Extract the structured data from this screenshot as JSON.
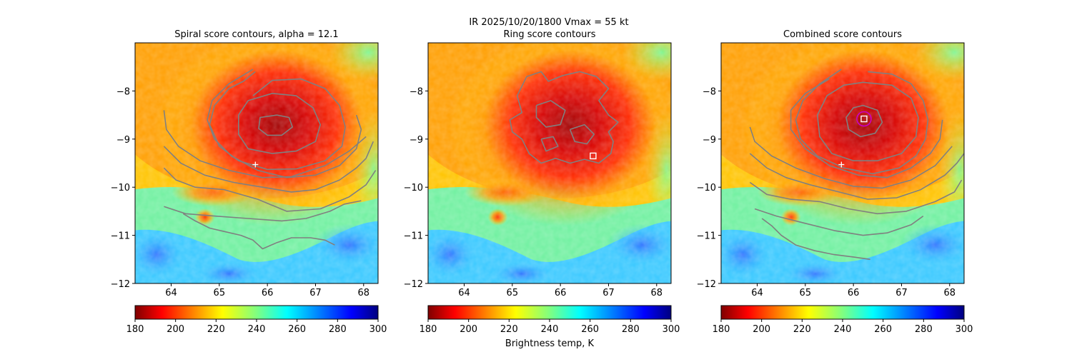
{
  "suptitle": "IR  2025/10/20/1800    Vmax = 55 kt",
  "colorbar_label": "Brightness temp, K",
  "colors": {
    "contour": "#808080",
    "marker": "#ffffff",
    "circle": "#cc00cc"
  },
  "chart_data": [
    {
      "type": "heatmap",
      "title": "Spiral score contours, alpha = 12.1",
      "xlim": [
        63.25,
        68.3
      ],
      "ylim": [
        -12.0,
        -7.0
      ],
      "x_ticks": [
        64,
        65,
        66,
        67,
        68
      ],
      "y_ticks": [
        -8,
        -9,
        -10,
        -11,
        -12
      ],
      "colorbar": {
        "colormap": "jet",
        "min": 180,
        "max": 300,
        "ticks": [
          180,
          200,
          220,
          240,
          260,
          280,
          300
        ]
      },
      "markers": [
        {
          "shape": "plus",
          "x": 65.75,
          "y": -9.53
        }
      ],
      "contours": [
        [
          [
            66.2,
            -8.5
          ],
          [
            66.45,
            -8.55
          ],
          [
            66.52,
            -8.75
          ],
          [
            66.3,
            -8.92
          ],
          [
            66.0,
            -8.92
          ],
          [
            65.82,
            -8.78
          ],
          [
            65.85,
            -8.55
          ],
          [
            66.2,
            -8.5
          ]
        ],
        [
          [
            66.1,
            -8.05
          ],
          [
            66.6,
            -8.1
          ],
          [
            66.95,
            -8.35
          ],
          [
            67.1,
            -8.7
          ],
          [
            67.0,
            -9.05
          ],
          [
            66.6,
            -9.25
          ],
          [
            66.1,
            -9.3
          ],
          [
            65.6,
            -9.2
          ],
          [
            65.4,
            -8.9
          ],
          [
            65.4,
            -8.5
          ],
          [
            65.6,
            -8.2
          ],
          [
            66.1,
            -8.05
          ]
        ],
        [
          [
            65.7,
            -8.1
          ],
          [
            66.1,
            -7.78
          ],
          [
            66.7,
            -7.75
          ],
          [
            67.2,
            -7.95
          ],
          [
            67.5,
            -8.3
          ],
          [
            67.62,
            -8.75
          ],
          [
            67.55,
            -9.15
          ],
          [
            67.2,
            -9.45
          ],
          [
            66.6,
            -9.62
          ],
          [
            66.0,
            -9.63
          ],
          [
            65.4,
            -9.45
          ],
          [
            65.0,
            -9.15
          ],
          [
            64.8,
            -8.7
          ],
          [
            64.9,
            -8.3
          ],
          [
            65.2,
            -7.95
          ],
          [
            65.5,
            -7.8
          ],
          [
            65.75,
            -7.6
          ]
        ],
        [
          [
            65.7,
            -7.55
          ],
          [
            65.2,
            -7.85
          ],
          [
            64.85,
            -8.2
          ],
          [
            64.75,
            -8.6
          ],
          [
            64.9,
            -9.0
          ],
          [
            65.25,
            -9.35
          ],
          [
            65.8,
            -9.65
          ],
          [
            66.4,
            -9.8
          ],
          [
            67.0,
            -9.75
          ],
          [
            67.5,
            -9.55
          ],
          [
            67.85,
            -9.2
          ],
          [
            67.95,
            -8.8
          ],
          [
            67.85,
            -8.5
          ]
        ],
        [
          [
            63.85,
            -8.4
          ],
          [
            63.9,
            -8.8
          ],
          [
            64.15,
            -9.15
          ],
          [
            64.6,
            -9.45
          ],
          [
            65.2,
            -9.65
          ],
          [
            65.9,
            -9.8
          ],
          [
            66.5,
            -9.78
          ],
          [
            67.2,
            -9.55
          ],
          [
            67.7,
            -9.25
          ],
          [
            68.05,
            -8.95
          ]
        ],
        [
          [
            63.85,
            -9.15
          ],
          [
            64.2,
            -9.5
          ],
          [
            64.7,
            -9.75
          ],
          [
            65.3,
            -9.9
          ],
          [
            65.9,
            -10.0
          ],
          [
            66.5,
            -10.1
          ],
          [
            67.0,
            -10.05
          ],
          [
            67.5,
            -9.85
          ],
          [
            67.85,
            -9.6
          ],
          [
            68.05,
            -9.4
          ],
          [
            68.2,
            -9.05
          ]
        ],
        [
          [
            63.85,
            -9.6
          ],
          [
            64.1,
            -9.85
          ],
          [
            64.5,
            -10.0
          ],
          [
            65.1,
            -10.05
          ],
          [
            65.8,
            -10.25
          ],
          [
            66.4,
            -10.5
          ],
          [
            67.1,
            -10.45
          ],
          [
            67.7,
            -10.2
          ],
          [
            68.05,
            -9.95
          ],
          [
            68.25,
            -9.65
          ]
        ],
        [
          [
            63.85,
            -10.4
          ],
          [
            64.3,
            -10.55
          ],
          [
            64.9,
            -10.6
          ],
          [
            65.6,
            -10.65
          ],
          [
            66.3,
            -10.7
          ],
          [
            66.8,
            -10.65
          ],
          [
            67.3,
            -10.5
          ],
          [
            67.6,
            -10.35
          ],
          [
            67.95,
            -10.28
          ]
        ],
        [
          [
            64.25,
            -10.55
          ],
          [
            64.5,
            -10.7
          ],
          [
            64.8,
            -10.85
          ],
          [
            65.1,
            -10.92
          ],
          [
            65.45,
            -11.0
          ],
          [
            65.7,
            -11.1
          ],
          [
            65.9,
            -11.28
          ],
          [
            66.2,
            -11.15
          ],
          [
            66.5,
            -11.05
          ],
          [
            66.9,
            -11.05
          ],
          [
            67.2,
            -11.1
          ],
          [
            67.4,
            -11.2
          ]
        ]
      ]
    },
    {
      "type": "heatmap",
      "title": "Ring score contours",
      "xlim": [
        63.25,
        68.3
      ],
      "ylim": [
        -12.0,
        -7.0
      ],
      "x_ticks": [
        64,
        65,
        66,
        67,
        68
      ],
      "y_ticks": [
        -8,
        -9,
        -10,
        -11,
        -12
      ],
      "colorbar": {
        "colormap": "jet",
        "min": 180,
        "max": 300,
        "ticks": [
          180,
          200,
          220,
          240,
          260,
          280,
          300
        ]
      },
      "markers": [
        {
          "shape": "square",
          "x": 66.68,
          "y": -9.35
        }
      ],
      "contours": [
        [
          [
            65.1,
            -8.1
          ],
          [
            65.3,
            -7.7
          ],
          [
            65.6,
            -7.6
          ],
          [
            65.75,
            -7.8
          ],
          [
            66.05,
            -7.68
          ],
          [
            66.4,
            -7.6
          ],
          [
            66.75,
            -7.7
          ],
          [
            67.0,
            -7.95
          ],
          [
            66.8,
            -8.2
          ],
          [
            67.0,
            -8.5
          ],
          [
            67.2,
            -8.65
          ],
          [
            67.0,
            -8.85
          ],
          [
            67.1,
            -9.05
          ],
          [
            67.05,
            -9.3
          ],
          [
            66.8,
            -9.5
          ],
          [
            66.5,
            -9.42
          ],
          [
            66.2,
            -9.5
          ],
          [
            65.9,
            -9.4
          ],
          [
            65.6,
            -9.5
          ],
          [
            65.35,
            -9.3
          ],
          [
            65.2,
            -9.0
          ],
          [
            65.0,
            -8.85
          ],
          [
            64.95,
            -8.6
          ],
          [
            65.2,
            -8.45
          ],
          [
            65.1,
            -8.1
          ]
        ],
        [
          [
            65.5,
            -8.3
          ],
          [
            65.8,
            -8.2
          ],
          [
            66.1,
            -8.4
          ],
          [
            66.0,
            -8.7
          ],
          [
            65.7,
            -8.75
          ],
          [
            65.5,
            -8.55
          ],
          [
            65.5,
            -8.3
          ]
        ],
        [
          [
            66.2,
            -8.8
          ],
          [
            66.5,
            -8.7
          ],
          [
            66.7,
            -8.9
          ],
          [
            66.55,
            -9.1
          ],
          [
            66.3,
            -9.05
          ],
          [
            66.2,
            -8.8
          ]
        ],
        [
          [
            65.6,
            -9.0
          ],
          [
            65.85,
            -8.95
          ],
          [
            65.95,
            -9.15
          ],
          [
            65.7,
            -9.25
          ],
          [
            65.6,
            -9.0
          ]
        ]
      ]
    },
    {
      "type": "heatmap",
      "title": "Combined score contours",
      "xlim": [
        63.25,
        68.3
      ],
      "ylim": [
        -12.0,
        -7.0
      ],
      "x_ticks": [
        64,
        65,
        66,
        67,
        68
      ],
      "y_ticks": [
        -8,
        -9,
        -10,
        -11,
        -12
      ],
      "colorbar": {
        "colormap": "jet",
        "min": 180,
        "max": 300,
        "ticks": [
          180,
          200,
          220,
          240,
          260,
          280,
          300
        ]
      },
      "markers": [
        {
          "shape": "plus",
          "x": 65.75,
          "y": -9.53
        },
        {
          "shape": "square",
          "x": 66.22,
          "y": -8.58
        },
        {
          "shape": "circle",
          "x": 66.22,
          "y": -8.58
        }
      ],
      "contours": [
        [
          [
            66.2,
            -8.3
          ],
          [
            66.5,
            -8.4
          ],
          [
            66.6,
            -8.65
          ],
          [
            66.45,
            -8.88
          ],
          [
            66.15,
            -8.95
          ],
          [
            65.9,
            -8.8
          ],
          [
            65.85,
            -8.55
          ],
          [
            66.0,
            -8.35
          ],
          [
            66.2,
            -8.3
          ]
        ],
        [
          [
            66.2,
            -7.82
          ],
          [
            66.8,
            -7.88
          ],
          [
            67.2,
            -8.15
          ],
          [
            67.35,
            -8.55
          ],
          [
            67.3,
            -8.95
          ],
          [
            67.0,
            -9.3
          ],
          [
            66.5,
            -9.45
          ],
          [
            66.0,
            -9.45
          ],
          [
            65.55,
            -9.3
          ],
          [
            65.3,
            -8.95
          ],
          [
            65.25,
            -8.5
          ],
          [
            65.45,
            -8.1
          ],
          [
            65.8,
            -7.88
          ],
          [
            66.2,
            -7.82
          ]
        ],
        [
          [
            65.75,
            -7.55
          ],
          [
            65.3,
            -7.85
          ],
          [
            64.95,
            -8.2
          ],
          [
            64.8,
            -8.6
          ],
          [
            64.9,
            -9.0
          ],
          [
            65.25,
            -9.35
          ],
          [
            65.8,
            -9.6
          ],
          [
            66.4,
            -9.72
          ],
          [
            66.95,
            -9.6
          ],
          [
            67.3,
            -9.35
          ],
          [
            67.5,
            -9.0
          ],
          [
            67.55,
            -8.6
          ],
          [
            67.45,
            -8.2
          ],
          [
            67.2,
            -7.85
          ],
          [
            66.8,
            -7.65
          ],
          [
            66.3,
            -7.6
          ]
        ],
        [
          [
            65.5,
            -7.75
          ],
          [
            65.0,
            -8.05
          ],
          [
            64.7,
            -8.4
          ],
          [
            64.7,
            -8.8
          ],
          [
            65.0,
            -9.2
          ],
          [
            65.5,
            -9.55
          ],
          [
            66.1,
            -9.75
          ],
          [
            66.7,
            -9.8
          ],
          [
            67.2,
            -9.6
          ],
          [
            67.6,
            -9.3
          ],
          [
            67.8,
            -9.0
          ],
          [
            67.85,
            -8.6
          ]
        ],
        [
          [
            63.85,
            -8.75
          ],
          [
            63.95,
            -9.05
          ],
          [
            64.3,
            -9.35
          ],
          [
            64.8,
            -9.6
          ],
          [
            65.4,
            -9.82
          ],
          [
            66.0,
            -9.98
          ],
          [
            66.6,
            -10.02
          ],
          [
            67.2,
            -9.85
          ],
          [
            67.7,
            -9.55
          ],
          [
            68.05,
            -9.15
          ]
        ],
        [
          [
            63.85,
            -9.3
          ],
          [
            64.2,
            -9.6
          ],
          [
            64.6,
            -9.8
          ],
          [
            65.1,
            -9.95
          ],
          [
            65.7,
            -10.1
          ],
          [
            66.3,
            -10.25
          ],
          [
            66.9,
            -10.22
          ],
          [
            67.4,
            -10.05
          ],
          [
            67.9,
            -9.75
          ],
          [
            68.15,
            -9.5
          ],
          [
            68.3,
            -9.3
          ]
        ],
        [
          [
            63.85,
            -9.9
          ],
          [
            64.2,
            -10.15
          ],
          [
            64.7,
            -10.25
          ],
          [
            65.3,
            -10.3
          ],
          [
            65.9,
            -10.45
          ],
          [
            66.5,
            -10.55
          ],
          [
            67.1,
            -10.5
          ],
          [
            67.7,
            -10.3
          ],
          [
            68.1,
            -10.1
          ],
          [
            68.25,
            -9.85
          ]
        ],
        [
          [
            63.95,
            -10.45
          ],
          [
            64.4,
            -10.6
          ],
          [
            65.0,
            -10.75
          ],
          [
            65.6,
            -10.9
          ],
          [
            66.2,
            -11.0
          ],
          [
            66.7,
            -10.95
          ],
          [
            67.2,
            -10.78
          ],
          [
            67.45,
            -10.6
          ]
        ],
        [
          [
            64.1,
            -10.65
          ],
          [
            64.3,
            -10.8
          ],
          [
            64.5,
            -11.0
          ],
          [
            64.8,
            -11.2
          ],
          [
            65.2,
            -11.32
          ],
          [
            65.6,
            -11.4
          ],
          [
            66.0,
            -11.45
          ],
          [
            66.35,
            -11.5
          ]
        ]
      ]
    }
  ]
}
